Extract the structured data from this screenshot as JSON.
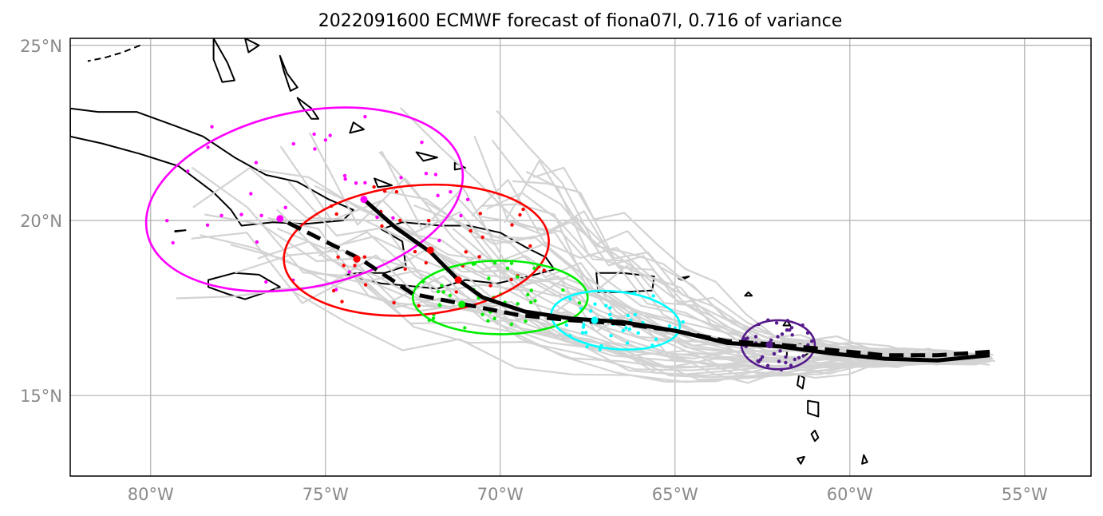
{
  "title": "2022091600 ECMWF forecast of fiona07l, 0.716 of variance",
  "axes": {
    "lon_ticks": [
      {
        "value": -80,
        "label": "80°W"
      },
      {
        "value": -75,
        "label": "75°W"
      },
      {
        "value": -70,
        "label": "70°W"
      },
      {
        "value": -65,
        "label": "65°W"
      },
      {
        "value": -60,
        "label": "60°W"
      },
      {
        "value": -55,
        "label": "55°W"
      }
    ],
    "lat_ticks": [
      {
        "value": 15,
        "label": "15°N"
      },
      {
        "value": 20,
        "label": "20°N"
      },
      {
        "value": 25,
        "label": "25°N"
      }
    ],
    "lon_range": [
      -82.3,
      -53.1
    ],
    "lat_range": [
      12.7,
      25.2
    ],
    "grid": true
  },
  "tracks": {
    "solid": [
      [
        -56,
        16.15
      ],
      [
        -57.5,
        16
      ],
      [
        -59,
        16.05
      ],
      [
        -60.5,
        16.2
      ],
      [
        -62,
        16.4
      ],
      [
        -63.5,
        16.5
      ],
      [
        -65,
        16.85
      ],
      [
        -66.5,
        17.1
      ],
      [
        -68,
        17.2
      ],
      [
        -69.3,
        17.4
      ],
      [
        -70.5,
        17.8
      ],
      [
        -71.2,
        18.3
      ],
      [
        -72,
        19.1
      ],
      [
        -73,
        19.8
      ],
      [
        -73.9,
        20.6
      ]
    ],
    "dashed": [
      [
        -56,
        16.25
      ],
      [
        -57.5,
        16.15
      ],
      [
        -59,
        16.15
      ],
      [
        -60.5,
        16.3
      ],
      [
        -62,
        16.45
      ],
      [
        -63.5,
        16.55
      ],
      [
        -65,
        16.85
      ],
      [
        -66.5,
        17.05
      ],
      [
        -68,
        17.15
      ],
      [
        -69.5,
        17.3
      ],
      [
        -71,
        17.6
      ],
      [
        -72.5,
        17.9
      ],
      [
        -74,
        18.9
      ],
      [
        -76.3,
        20.05
      ]
    ]
  },
  "clusters": [
    {
      "color": "#ff00ff",
      "center": [
        -75.6,
        20.6
      ],
      "rx_deg": 4.6,
      "ry_deg": 2.5,
      "angle": 12
    },
    {
      "color": "#ff0000",
      "center": [
        -72.4,
        19.15
      ],
      "rx_deg": 3.8,
      "ry_deg": 1.85,
      "angle": 5
    },
    {
      "color": "#00ee00",
      "center": [
        -70,
        17.8
      ],
      "rx_deg": 2.5,
      "ry_deg": 1.05,
      "angle": 0
    },
    {
      "color": "#00ffff",
      "center": [
        -66.7,
        17.15
      ],
      "rx_deg": 1.85,
      "ry_deg": 0.82,
      "angle": -6
    },
    {
      "color": "#551a8b",
      "center": [
        -62.05,
        16.45
      ],
      "rx_deg": 1.05,
      "ry_deg": 0.7,
      "angle": 0
    }
  ],
  "colors": {
    "background": "#ffffff",
    "grid": "#b0b0b0",
    "ensemble_members": "#d3d3d3",
    "coastline": "#000000",
    "tick_labels": "#8a8a8a"
  }
}
